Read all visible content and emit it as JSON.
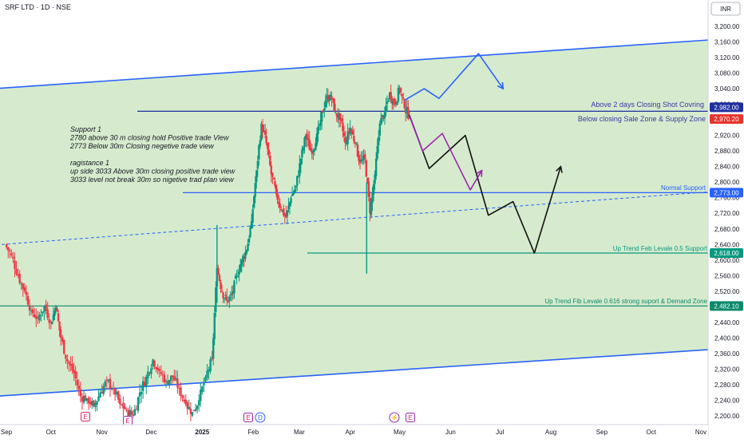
{
  "header": {
    "symbol_title": "SRF LTD · 1D · NSE",
    "currency": "INR"
  },
  "annotations": {
    "support_note": [
      "Support 1",
      "2780 above 30 m closing hold  Positive trade View",
      "2773 Below 30m Closing negetive trade view",
      "",
      "ragistance 1",
      "up side 3033 Above 30m closing positive trade view",
      "3033 level not break 30m so nigetive trad plan view"
    ],
    "above_2_days": "Above 2 days Closing Shot Covring",
    "below_closing": "Below closing Sale Zone & Supply Zone",
    "normal_support": "Normal Support",
    "uptrend_05": "Up Trend Feb Levale 0.5 Support",
    "uptrend_0618": "Up Trend Fib Levale 0.616 strong suport & Demand Zone"
  },
  "price_tags": [
    {
      "label": "2,982.00",
      "value": 2982,
      "color": "#1f2fa0"
    },
    {
      "label": "2,970.20",
      "value": 2970.2,
      "color": "#e8342b"
    },
    {
      "label": "2,773.00",
      "value": 2773,
      "color": "#2962ff"
    },
    {
      "label": "2,618.00",
      "value": 2618,
      "color": "#089981"
    },
    {
      "label": "2,482.10",
      "value": 2482.1,
      "color": "#0a8a6a"
    }
  ],
  "event_markers": [
    {
      "symbol": "E",
      "month": "Oct"
    },
    {
      "symbol": "E",
      "month": "Dec"
    },
    {
      "symbol": "E",
      "month": "Feb"
    },
    {
      "symbol": "D",
      "month": "Feb"
    },
    {
      "symbol": "⚡",
      "month": "May"
    },
    {
      "symbol": "E",
      "month": "May"
    }
  ],
  "colors": {
    "up": "#089981",
    "down": "#f23645",
    "channel": "#2962ff",
    "level_navy": "#1f2fa0",
    "level_green": "#0a8a6a",
    "path_black": "#111111",
    "path_purple": "#9c27b0",
    "bg_green": "#d6ebcd"
  },
  "chart_data": {
    "type": "candlestick",
    "title": "SRF LTD · 1D · NSE",
    "currency": "INR",
    "y_axis": {
      "ticks": [
        2200,
        2240,
        2280,
        2320,
        2360,
        2400,
        2440,
        2480,
        2520,
        2560,
        2600,
        2640,
        2680,
        2720,
        2760,
        2800,
        2840,
        2880,
        2920,
        2960,
        3000,
        3040,
        3080,
        3120,
        3160,
        3200
      ],
      "range": [
        2185,
        3250
      ]
    },
    "x_axis": {
      "ticks": [
        {
          "label": "Sep",
          "day": 0
        },
        {
          "label": "Oct",
          "day": 30
        },
        {
          "label": "Nov",
          "day": 61
        },
        {
          "label": "Dec",
          "day": 91
        },
        {
          "label": "2025",
          "day": 122
        },
        {
          "label": "Feb",
          "day": 153
        },
        {
          "label": "Mar",
          "day": 181
        },
        {
          "label": "Apr",
          "day": 212
        },
        {
          "label": "May",
          "day": 242
        },
        {
          "label": "Jun",
          "day": 273
        },
        {
          "label": "Jul",
          "day": 303
        },
        {
          "label": "Aug",
          "day": 334
        },
        {
          "label": "Sep",
          "day": 365
        },
        {
          "label": "Oct",
          "day": 395
        },
        {
          "label": "Nov",
          "day": 426
        }
      ]
    },
    "price_series": [
      {
        "day": 2,
        "close": 2640
      },
      {
        "day": 6,
        "close": 2612
      },
      {
        "day": 10,
        "close": 2560
      },
      {
        "day": 14,
        "close": 2520
      },
      {
        "day": 18,
        "close": 2470
      },
      {
        "day": 22,
        "close": 2450
      },
      {
        "day": 26,
        "close": 2482
      },
      {
        "day": 30,
        "close": 2440
      },
      {
        "day": 33,
        "close": 2480
      },
      {
        "day": 36,
        "close": 2400
      },
      {
        "day": 40,
        "close": 2340
      },
      {
        "day": 44,
        "close": 2310
      },
      {
        "day": 48,
        "close": 2250
      },
      {
        "day": 52,
        "close": 2245
      },
      {
        "day": 56,
        "close": 2225
      },
      {
        "day": 60,
        "close": 2260
      },
      {
        "day": 64,
        "close": 2290
      },
      {
        "day": 68,
        "close": 2270
      },
      {
        "day": 72,
        "close": 2230
      },
      {
        "day": 76,
        "close": 2215
      },
      {
        "day": 80,
        "close": 2200
      },
      {
        "day": 84,
        "close": 2260
      },
      {
        "day": 88,
        "close": 2300
      },
      {
        "day": 92,
        "close": 2345
      },
      {
        "day": 96,
        "close": 2315
      },
      {
        "day": 100,
        "close": 2290
      },
      {
        "day": 104,
        "close": 2300
      },
      {
        "day": 108,
        "close": 2270
      },
      {
        "day": 112,
        "close": 2230
      },
      {
        "day": 116,
        "close": 2210
      },
      {
        "day": 120,
        "close": 2240
      },
      {
        "day": 124,
        "close": 2300
      },
      {
        "day": 128,
        "close": 2345
      },
      {
        "day": 131,
        "close": 2580
      },
      {
        "day": 134,
        "close": 2520
      },
      {
        "day": 137,
        "close": 2495
      },
      {
        "day": 140,
        "close": 2510
      },
      {
        "day": 143,
        "close": 2560
      },
      {
        "day": 146,
        "close": 2600
      },
      {
        "day": 149,
        "close": 2625
      },
      {
        "day": 152,
        "close": 2700
      },
      {
        "day": 155,
        "close": 2830
      },
      {
        "day": 158,
        "close": 2950
      },
      {
        "day": 161,
        "close": 2900
      },
      {
        "day": 164,
        "close": 2820
      },
      {
        "day": 167,
        "close": 2770
      },
      {
        "day": 170,
        "close": 2730
      },
      {
        "day": 173,
        "close": 2710
      },
      {
        "day": 176,
        "close": 2760
      },
      {
        "day": 179,
        "close": 2790
      },
      {
        "day": 182,
        "close": 2860
      },
      {
        "day": 185,
        "close": 2920
      },
      {
        "day": 188,
        "close": 2880
      },
      {
        "day": 191,
        "close": 2900
      },
      {
        "day": 194,
        "close": 2960
      },
      {
        "day": 197,
        "close": 3010
      },
      {
        "day": 200,
        "close": 3025
      },
      {
        "day": 203,
        "close": 2980
      },
      {
        "day": 206,
        "close": 2960
      },
      {
        "day": 209,
        "close": 2900
      },
      {
        "day": 212,
        "close": 2940
      },
      {
        "day": 215,
        "close": 2900
      },
      {
        "day": 218,
        "close": 2850
      },
      {
        "day": 221,
        "close": 2860
      },
      {
        "day": 224,
        "close": 2720
      },
      {
        "day": 227,
        "close": 2820
      },
      {
        "day": 230,
        "close": 2950
      },
      {
        "day": 233,
        "close": 2980
      },
      {
        "day": 236,
        "close": 3030
      },
      {
        "day": 239,
        "close": 3000
      },
      {
        "day": 242,
        "close": 3040
      },
      {
        "day": 245,
        "close": 2990
      },
      {
        "day": 248,
        "close": 2970.2
      }
    ],
    "horizontal_levels": [
      {
        "label": "Above 2 days Closing Shot Covring",
        "value": 2982,
        "color": "#1f2fa0"
      },
      {
        "label": "Below closing Sale Zone & Supply Zone",
        "value": 2970.2,
        "color": "#e8342b"
      },
      {
        "label": "Normal Support",
        "value": 2773,
        "color": "#2962ff"
      },
      {
        "label": "Up Trend Feb Levale 0.5 Support",
        "value": 2618,
        "color": "#089981"
      },
      {
        "label": "Up Trend Fib Levale 0.616 strong suport & Demand Zone",
        "value": 2482.1,
        "color": "#0a8a6a"
      }
    ],
    "trend_lines": [
      {
        "style": "solid",
        "points": [
          {
            "day": -5,
            "price": 3040
          },
          {
            "day": 430,
            "price": 3165
          }
        ]
      },
      {
        "style": "solid",
        "points": [
          {
            "day": -5,
            "price": 2250
          },
          {
            "day": 430,
            "price": 2370
          }
        ]
      },
      {
        "style": "dashed",
        "points": [
          {
            "day": 0,
            "price": 2640
          },
          {
            "day": 430,
            "price": 2775
          }
        ]
      }
    ],
    "projections": [
      {
        "color": "#2962ff",
        "points": [
          {
            "day": 245,
            "price": 3010
          },
          {
            "day": 257,
            "price": 3040
          },
          {
            "day": 266,
            "price": 3015
          },
          {
            "day": 290,
            "price": 3130
          },
          {
            "day": 305,
            "price": 3040
          }
        ]
      },
      {
        "color": "#111111",
        "points": [
          {
            "day": 248,
            "price": 2972
          },
          {
            "day": 260,
            "price": 2835
          },
          {
            "day": 282,
            "price": 2920
          },
          {
            "day": 296,
            "price": 2715
          },
          {
            "day": 311,
            "price": 2750
          },
          {
            "day": 324,
            "price": 2618
          },
          {
            "day": 340,
            "price": 2840
          }
        ]
      },
      {
        "color": "#9c27b0",
        "points": [
          {
            "day": 248,
            "price": 2970
          },
          {
            "day": 256,
            "price": 2880
          },
          {
            "day": 268,
            "price": 2925
          },
          {
            "day": 285,
            "price": 2780
          },
          {
            "day": 292,
            "price": 2830
          }
        ]
      }
    ]
  }
}
